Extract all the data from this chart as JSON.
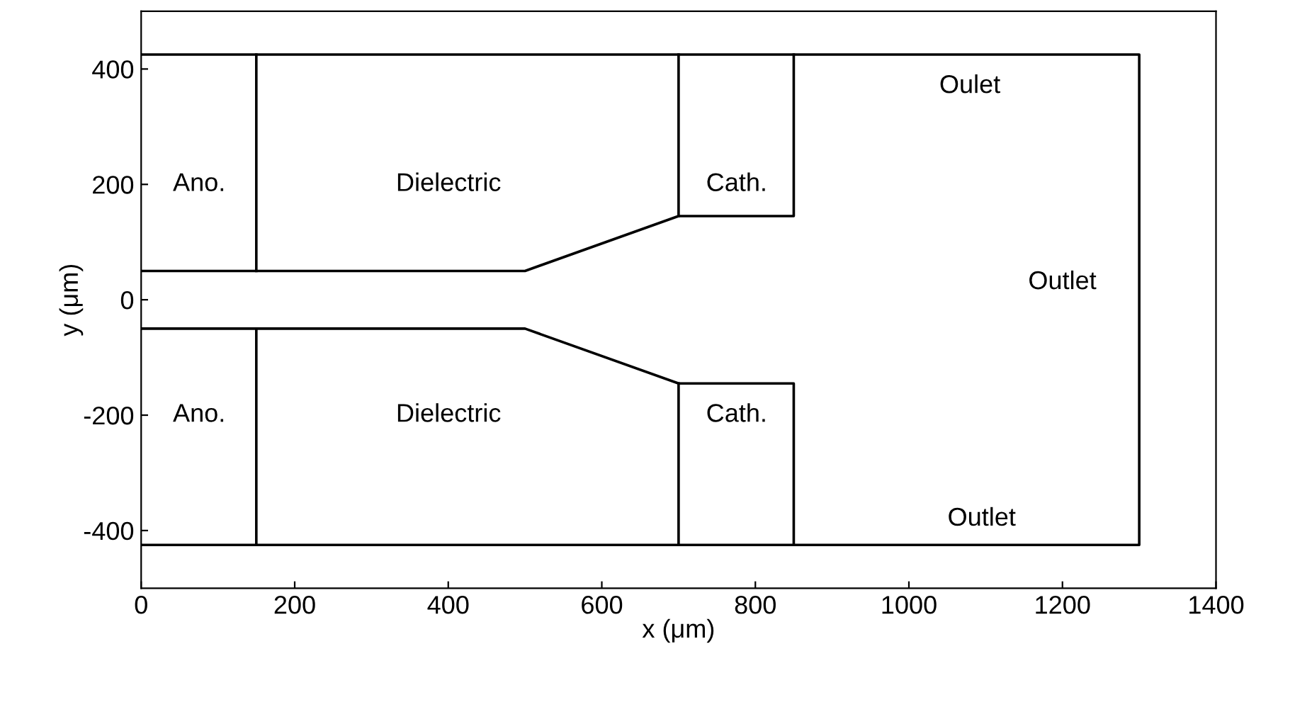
{
  "chart_data": {
    "type": "line",
    "xlabel": "x (μm)",
    "ylabel": "y (μm)",
    "xlim": [
      0,
      1400
    ],
    "ylim": [
      -500,
      500
    ],
    "xticks": [
      0,
      200,
      400,
      600,
      800,
      1000,
      1200,
      1400
    ],
    "yticks": [
      -400,
      -200,
      0,
      200,
      400
    ],
    "grid": false,
    "legend": false,
    "marker": "none",
    "line_style": "solid",
    "series": [
      {
        "color": "#000000",
        "x": [
          0,
          1300,
          1300,
          0
        ],
        "values": [
          425,
          425,
          -425,
          -425
        ]
      },
      {
        "color": "#000000",
        "x": [
          150,
          150
        ],
        "values": [
          50,
          425
        ]
      },
      {
        "color": "#000000",
        "x": [
          150,
          150
        ],
        "values": [
          -50,
          -425
        ]
      },
      {
        "color": "#000000",
        "x": [
          0,
          500,
          700,
          850,
          850
        ],
        "values": [
          50,
          50,
          145,
          145,
          425
        ]
      },
      {
        "color": "#000000",
        "x": [
          0,
          500,
          700,
          850,
          850
        ],
        "values": [
          -50,
          -50,
          -145,
          -145,
          -425
        ]
      },
      {
        "color": "#000000",
        "x": [
          700,
          700
        ],
        "values": [
          145,
          425
        ]
      },
      {
        "color": "#000000",
        "x": [
          700,
          700
        ],
        "values": [
          -145,
          -425
        ]
      }
    ],
    "annotations": [
      "Ano.",
      "Dielectric",
      "Cath.",
      "Ano.",
      "Dielectric",
      "Cath.",
      "Oulet",
      "Outlet",
      "Outlet"
    ]
  }
}
